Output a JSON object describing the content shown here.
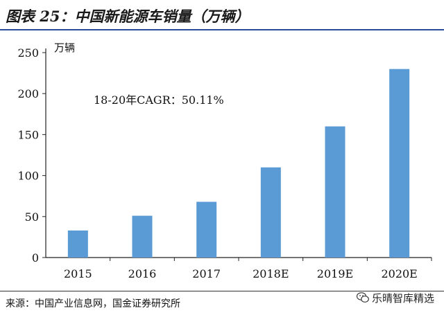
{
  "header": {
    "title": "图表 25：中国新能源车销量（万辆）"
  },
  "footer": {
    "source": "来源：中国产业信息网，国金证券研究所"
  },
  "watermark": {
    "text": "乐晴智库精选",
    "icon": "wechat-icon"
  },
  "colors": {
    "bar": "#5b9bd5",
    "axis": "#222222",
    "rule": "#2a4a9a"
  },
  "chart_data": {
    "type": "bar",
    "title": "",
    "unit_label": "万辆",
    "annotation": "18-20年CAGR：50.11%",
    "categories": [
      "2015",
      "2016",
      "2017",
      "2018E",
      "2019E",
      "2020E"
    ],
    "values": [
      33,
      51,
      68,
      110,
      160,
      230
    ],
    "ylim": [
      0,
      250
    ],
    "yticks": [
      0,
      50,
      100,
      150,
      200,
      250
    ],
    "grid": false,
    "legend": "none"
  }
}
